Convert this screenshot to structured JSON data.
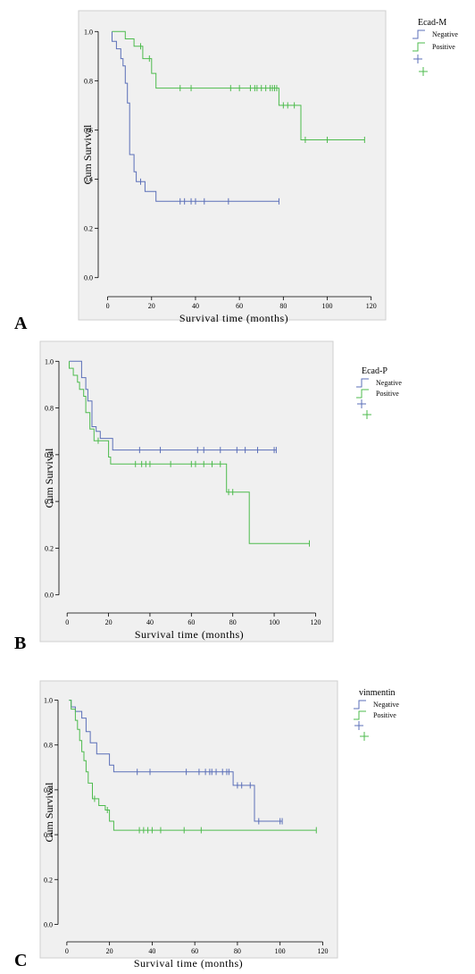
{
  "chart_data": [
    {
      "type": "line",
      "panel_label": "A",
      "xlabel": "Survival time (months)",
      "ylabel": "Cum Survival",
      "xlim": [
        -10,
        125
      ],
      "ylim": [
        -0.07,
        1.07
      ],
      "x_ticks": [
        0,
        20,
        40,
        60,
        80,
        100,
        120
      ],
      "y_ticks": [
        "0.0",
        "0.2",
        "0.4",
        "0.6",
        "0.8",
        "1.0"
      ],
      "grid": false,
      "legend_title": "Ecad-M",
      "legend_position": "right",
      "series": [
        {
          "name": "Negative",
          "color": "#5b6fb8",
          "steps": [
            [
              2,
              1.0
            ],
            [
              2,
              0.96
            ],
            [
              4,
              0.93
            ],
            [
              6,
              0.89
            ],
            [
              7,
              0.86
            ],
            [
              8,
              0.79
            ],
            [
              9,
              0.71
            ],
            [
              10,
              0.5
            ],
            [
              12,
              0.43
            ],
            [
              13,
              0.39
            ],
            [
              17,
              0.35
            ],
            [
              22,
              0.31
            ],
            [
              78,
              0.31
            ]
          ],
          "censored": [
            [
              15,
              0.39
            ],
            [
              33,
              0.31
            ],
            [
              35,
              0.31
            ],
            [
              38,
              0.31
            ],
            [
              40,
              0.31
            ],
            [
              44,
              0.31
            ],
            [
              55,
              0.31
            ],
            [
              78,
              0.31
            ]
          ]
        },
        {
          "name": "Positive",
          "color": "#4dbb4d",
          "steps": [
            [
              2,
              1.0
            ],
            [
              8,
              0.97
            ],
            [
              12,
              0.94
            ],
            [
              16,
              0.89
            ],
            [
              20,
              0.83
            ],
            [
              22,
              0.77
            ],
            [
              78,
              0.77
            ],
            [
              78,
              0.7
            ],
            [
              88,
              0.7
            ],
            [
              88,
              0.56
            ],
            [
              117,
              0.56
            ]
          ],
          "censored": [
            [
              15,
              0.94
            ],
            [
              19,
              0.89
            ],
            [
              33,
              0.77
            ],
            [
              38,
              0.77
            ],
            [
              56,
              0.77
            ],
            [
              60,
              0.77
            ],
            [
              65,
              0.77
            ],
            [
              67,
              0.77
            ],
            [
              68,
              0.77
            ],
            [
              70,
              0.77
            ],
            [
              72,
              0.77
            ],
            [
              74,
              0.77
            ],
            [
              75,
              0.77
            ],
            [
              76,
              0.77
            ],
            [
              77,
              0.77
            ],
            [
              80,
              0.7
            ],
            [
              82,
              0.7
            ],
            [
              85,
              0.7
            ],
            [
              90,
              0.56
            ],
            [
              100,
              0.56
            ],
            [
              117,
              0.56
            ]
          ]
        }
      ]
    },
    {
      "type": "line",
      "panel_label": "B",
      "xlabel": "Survival time (months)",
      "ylabel": "Cum Survival",
      "xlim": [
        -10,
        128
      ],
      "ylim": [
        -0.07,
        1.07
      ],
      "x_ticks": [
        0,
        20,
        40,
        60,
        80,
        100,
        120
      ],
      "y_ticks": [
        "0.0",
        "0.2",
        "0.4",
        "0.6",
        "0.8",
        "1.0"
      ],
      "grid": false,
      "legend_title": "Ecad-P",
      "legend_position": "right",
      "series": [
        {
          "name": "Negative",
          "color": "#5b6fb8",
          "steps": [
            [
              1,
              1.0
            ],
            [
              7,
              1.0
            ],
            [
              7,
              0.93
            ],
            [
              9,
              0.88
            ],
            [
              10,
              0.83
            ],
            [
              12,
              0.72
            ],
            [
              14,
              0.7
            ],
            [
              16,
              0.67
            ],
            [
              22,
              0.62
            ],
            [
              101,
              0.62
            ]
          ],
          "censored": [
            [
              35,
              0.62
            ],
            [
              45,
              0.62
            ],
            [
              63,
              0.62
            ],
            [
              66,
              0.62
            ],
            [
              74,
              0.62
            ],
            [
              82,
              0.62
            ],
            [
              86,
              0.62
            ],
            [
              92,
              0.62
            ],
            [
              100,
              0.62
            ],
            [
              101,
              0.62
            ]
          ]
        },
        {
          "name": "Positive",
          "color": "#4dbb4d",
          "steps": [
            [
              1,
              1.0
            ],
            [
              1,
              0.97
            ],
            [
              3,
              0.94
            ],
            [
              5,
              0.91
            ],
            [
              6,
              0.88
            ],
            [
              8,
              0.85
            ],
            [
              9,
              0.78
            ],
            [
              11,
              0.71
            ],
            [
              13,
              0.66
            ],
            [
              20,
              0.59
            ],
            [
              21,
              0.56
            ],
            [
              77,
              0.56
            ],
            [
              77,
              0.44
            ],
            [
              88,
              0.44
            ],
            [
              88,
              0.22
            ],
            [
              117,
              0.22
            ]
          ],
          "censored": [
            [
              15,
              0.66
            ],
            [
              33,
              0.56
            ],
            [
              36,
              0.56
            ],
            [
              38,
              0.56
            ],
            [
              40,
              0.56
            ],
            [
              50,
              0.56
            ],
            [
              60,
              0.56
            ],
            [
              62,
              0.56
            ],
            [
              66,
              0.56
            ],
            [
              70,
              0.56
            ],
            [
              74,
              0.56
            ],
            [
              78,
              0.44
            ],
            [
              80,
              0.44
            ],
            [
              117,
              0.22
            ]
          ]
        }
      ]
    },
    {
      "type": "line",
      "panel_label": "C",
      "xlabel": "Survival time (months)",
      "ylabel": "Cum Survival",
      "xlim": [
        -10,
        124
      ],
      "ylim": [
        -0.07,
        1.07
      ],
      "x_ticks": [
        0,
        20,
        40,
        60,
        80,
        100,
        120
      ],
      "y_ticks": [
        "0.0",
        "0.2",
        "0.4",
        "0.6",
        "0.8",
        "1.0"
      ],
      "grid": false,
      "legend_title": "vinmentin",
      "legend_position": "right",
      "series": [
        {
          "name": "Negative",
          "color": "#5b6fb8",
          "steps": [
            [
              1,
              1.0
            ],
            [
              2,
              0.97
            ],
            [
              4,
              0.95
            ],
            [
              7,
              0.92
            ],
            [
              9,
              0.86
            ],
            [
              11,
              0.81
            ],
            [
              14,
              0.76
            ],
            [
              20,
              0.71
            ],
            [
              22,
              0.68
            ],
            [
              77,
              0.68
            ],
            [
              78,
              0.62
            ],
            [
              88,
              0.62
            ],
            [
              88,
              0.46
            ],
            [
              101,
              0.46
            ]
          ],
          "censored": [
            [
              33,
              0.68
            ],
            [
              39,
              0.68
            ],
            [
              56,
              0.68
            ],
            [
              62,
              0.68
            ],
            [
              65,
              0.68
            ],
            [
              67,
              0.68
            ],
            [
              68,
              0.68
            ],
            [
              70,
              0.68
            ],
            [
              73,
              0.68
            ],
            [
              75,
              0.68
            ],
            [
              76,
              0.68
            ],
            [
              80,
              0.62
            ],
            [
              82,
              0.62
            ],
            [
              86,
              0.62
            ],
            [
              90,
              0.46
            ],
            [
              100,
              0.46
            ],
            [
              101,
              0.46
            ]
          ]
        },
        {
          "name": "Positive",
          "color": "#4dbb4d",
          "steps": [
            [
              1,
              1.0
            ],
            [
              2,
              0.96
            ],
            [
              4,
              0.91
            ],
            [
              5,
              0.87
            ],
            [
              6,
              0.82
            ],
            [
              7,
              0.77
            ],
            [
              8,
              0.73
            ],
            [
              9,
              0.68
            ],
            [
              10,
              0.63
            ],
            [
              12,
              0.56
            ],
            [
              15,
              0.53
            ],
            [
              18,
              0.51
            ],
            [
              20,
              0.46
            ],
            [
              22,
              0.42
            ],
            [
              117,
              0.42
            ]
          ],
          "censored": [
            [
              13,
              0.56
            ],
            [
              19,
              0.51
            ],
            [
              34,
              0.42
            ],
            [
              36,
              0.42
            ],
            [
              38,
              0.42
            ],
            [
              40,
              0.42
            ],
            [
              44,
              0.42
            ],
            [
              55,
              0.42
            ],
            [
              63,
              0.42
            ],
            [
              117,
              0.42
            ]
          ]
        }
      ]
    }
  ]
}
